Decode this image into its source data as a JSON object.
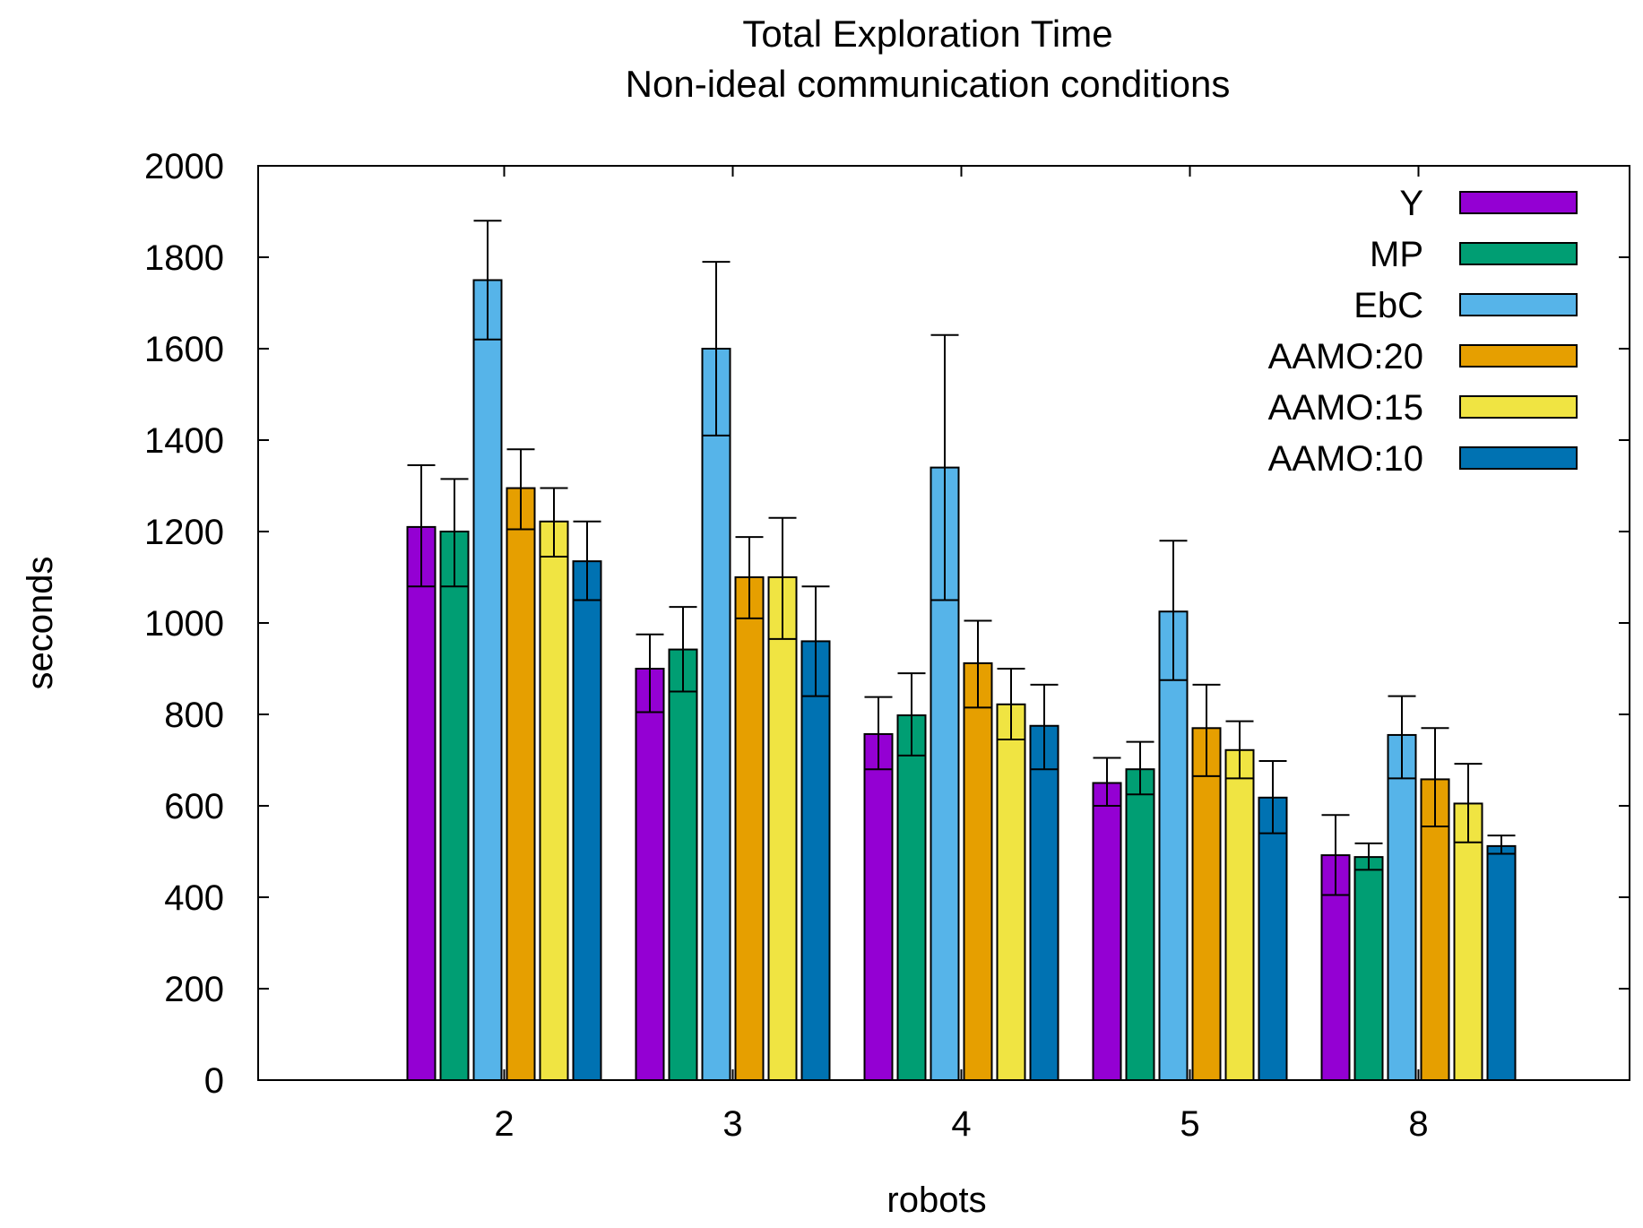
{
  "chart_data": {
    "type": "bar",
    "title": "Total Exploration Time",
    "subtitle": "Non-ideal communication conditions",
    "xlabel": "robots",
    "ylabel": "seconds",
    "ylim": [
      0,
      2000
    ],
    "yticks": [
      0,
      200,
      400,
      600,
      800,
      1000,
      1200,
      1400,
      1600,
      1800,
      2000
    ],
    "categories": [
      "2",
      "3",
      "4",
      "5",
      "8"
    ],
    "grid": false,
    "legend": "top-right",
    "series": [
      {
        "name": "Y",
        "color": "#9400d3",
        "values": [
          1210,
          900,
          757,
          650,
          492
        ],
        "err_low": [
          1080,
          805,
          680,
          600,
          405
        ],
        "err_high": [
          1345,
          975,
          838,
          705,
          580
        ]
      },
      {
        "name": "MP",
        "color": "#009e73",
        "values": [
          1200,
          942,
          798,
          680,
          488
        ],
        "err_low": [
          1080,
          850,
          710,
          625,
          460
        ],
        "err_high": [
          1315,
          1035,
          890,
          740,
          518
        ]
      },
      {
        "name": "EbC",
        "color": "#56b4e9",
        "values": [
          1750,
          1600,
          1340,
          1025,
          755
        ],
        "err_low": [
          1620,
          1410,
          1050,
          875,
          660
        ],
        "err_high": [
          1880,
          1790,
          1630,
          1180,
          840
        ]
      },
      {
        "name": "AAMO:20",
        "color": "#e69f00",
        "values": [
          1295,
          1100,
          912,
          770,
          658
        ],
        "err_low": [
          1205,
          1010,
          815,
          665,
          555
        ],
        "err_high": [
          1380,
          1188,
          1005,
          865,
          770
        ]
      },
      {
        "name": "AAMO:15",
        "color": "#f0e442",
        "values": [
          1222,
          1100,
          822,
          722,
          605
        ],
        "err_low": [
          1145,
          965,
          745,
          660,
          520
        ],
        "err_high": [
          1295,
          1230,
          900,
          785,
          692
        ]
      },
      {
        "name": "AAMO:10",
        "color": "#0072b2",
        "values": [
          1135,
          960,
          775,
          618,
          512
        ],
        "err_low": [
          1050,
          840,
          680,
          540,
          495
        ],
        "err_high": [
          1222,
          1080,
          865,
          698,
          535
        ]
      }
    ]
  }
}
